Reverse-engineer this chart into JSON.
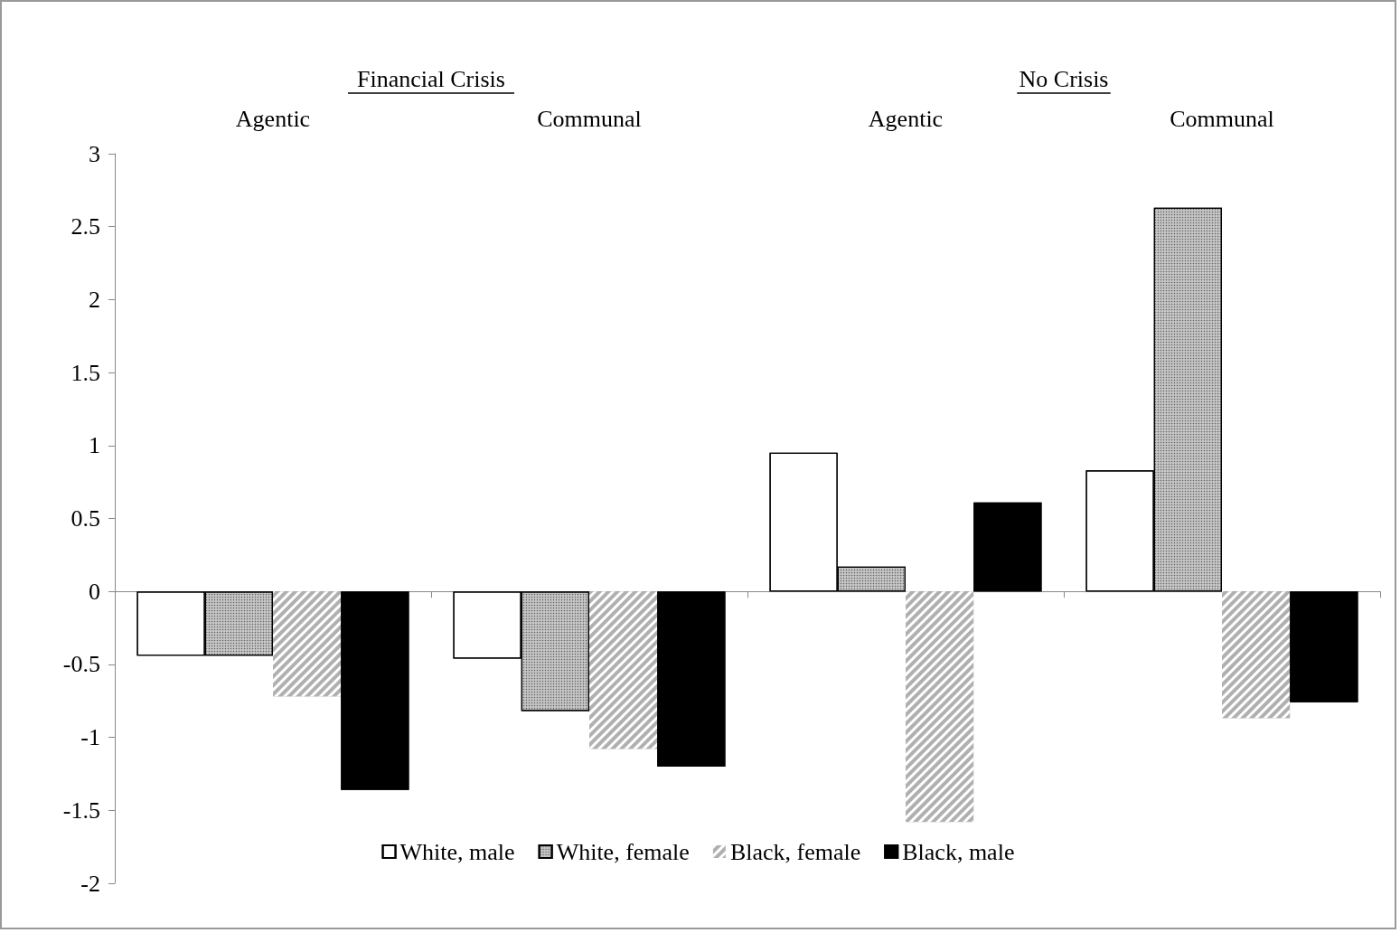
{
  "chart_data": {
    "type": "bar",
    "categories": [
      "Agentic",
      "Communal",
      "Agentic",
      "Communal"
    ],
    "annotations": [
      "Financial Crisis",
      "No Crisis"
    ],
    "series": [
      {
        "name": "White, male",
        "color": "#ffffff",
        "values": [
          -0.44,
          -0.46,
          0.95,
          0.83
        ]
      },
      {
        "name": "White, female",
        "color": "#c8c8c8",
        "values": [
          -0.44,
          -0.82,
          0.17,
          2.63
        ]
      },
      {
        "name": "Black, female",
        "color": "#b0b0b0",
        "values": [
          -0.72,
          -1.08,
          -1.58,
          -0.87
        ]
      },
      {
        "name": "Black, male",
        "color": "#000000",
        "values": [
          -1.36,
          -1.2,
          0.61,
          -0.76
        ]
      }
    ],
    "ylim": [
      -2,
      3
    ],
    "yticks": [
      -2,
      -1.5,
      -1,
      -0.5,
      0,
      0.5,
      1,
      1.5,
      2,
      2.5,
      3
    ],
    "legend": "bottom"
  }
}
